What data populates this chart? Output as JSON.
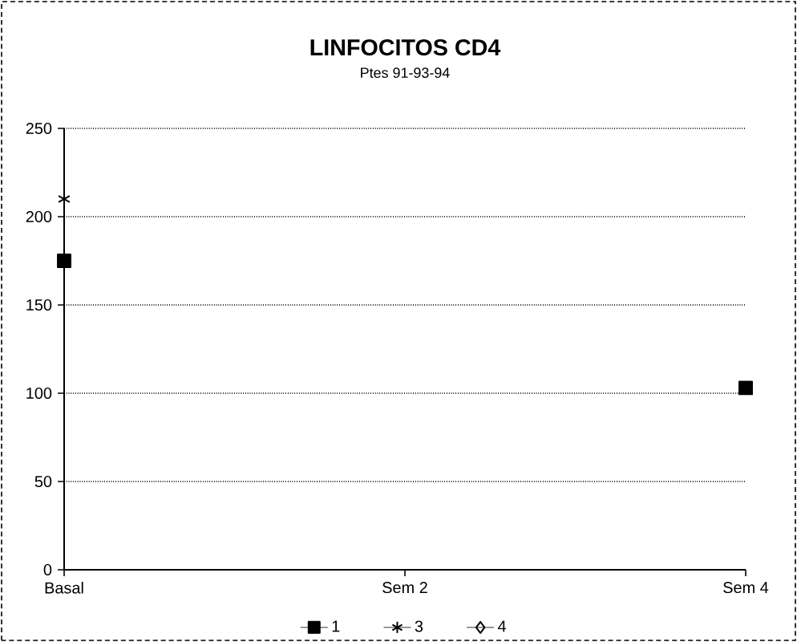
{
  "chart_data": {
    "type": "line",
    "title": "LINFOCITOS CD4",
    "subtitle": "Ptes 91-93-94",
    "categories": [
      "Basal",
      "Sem 2",
      "Sem 4"
    ],
    "series": [
      {
        "name": "1",
        "color": "#000000",
        "marker": "square",
        "values": [
          175,
          null,
          103
        ]
      },
      {
        "name": "3",
        "color": "#000000",
        "marker": "cross",
        "values": [
          210,
          null,
          null
        ]
      },
      {
        "name": "4",
        "color": "#000000",
        "marker": "diamond",
        "values": [
          null,
          null,
          null
        ]
      }
    ],
    "ylim": [
      0,
      250
    ],
    "yticks": [
      0,
      50,
      100,
      150,
      200,
      250
    ],
    "grid": "y",
    "legend": "bottom",
    "line_style": "solid"
  }
}
